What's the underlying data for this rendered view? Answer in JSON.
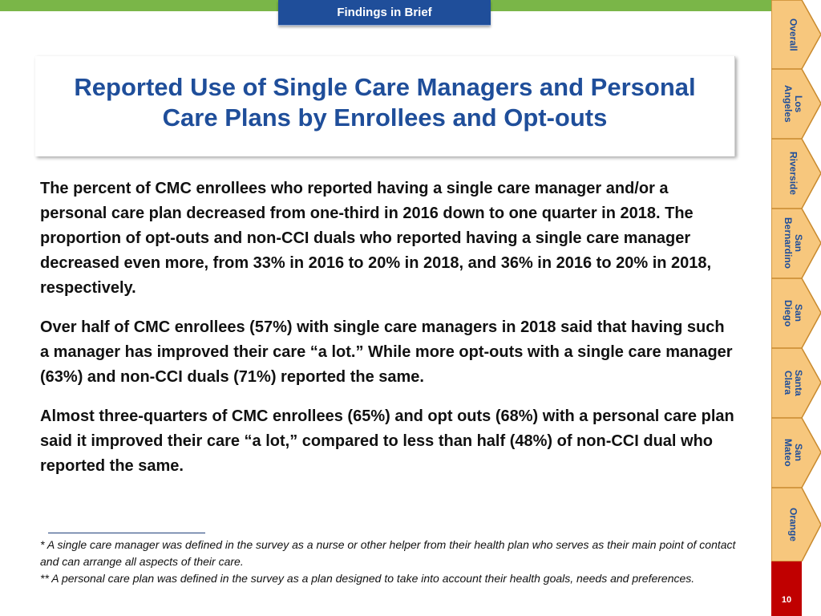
{
  "header": {
    "tab_label": "Findings in Brief"
  },
  "title": {
    "line1": "Reported Use of Single Care Managers and Personal",
    "line2": "Care Plans by Enrollees and Opt-outs"
  },
  "body": {
    "paragraphs": [
      "The percent of CMC enrollees who reported having a single care manager and/or a personal care plan decreased from one-third in 2016 down to one quarter in 2018. The proportion of opt-outs and non-CCI duals who reported having a single care manager decreased even more, from 33% in 2016 to 20% in 2018, and 36% in 2016 to 20% in 2018, respectively.",
      "Over half of CMC enrollees (57%) with single care managers in 2018 said that having such a manager has improved their care “a lot.” While more opt-outs with a single care manager (63%) and non-CCI duals (71%) reported the same.",
      "Almost three-quarters of CMC enrollees (65%) and opt outs (68%) with a personal care plan said it improved their care “a lot,” compared to less than half (48%) of non-CCI dual who reported the same."
    ]
  },
  "footnotes": {
    "note1": "* A single care manager was defined in the survey as a nurse or other helper from their health plan who serves as their main point of contact and can arrange all aspects of their care.",
    "note2": "** A personal care plan was defined in the survey as a plan designed to take into account their health goals, needs and preferences."
  },
  "sidenav": {
    "items": [
      {
        "label": "Overall"
      },
      {
        "label": "Los\nAngeles"
      },
      {
        "label": "Riverside"
      },
      {
        "label": "San\nBernardino"
      },
      {
        "label": "San\nDiego"
      },
      {
        "label": "Santa\nClara"
      },
      {
        "label": "San\nMateo"
      },
      {
        "label": "Orange"
      }
    ]
  },
  "page": {
    "number": "10"
  },
  "colors": {
    "accent_blue": "#1f4e9a",
    "accent_green": "#7ab648",
    "tab_fill": "#f7c77d",
    "page_red": "#c00000"
  }
}
